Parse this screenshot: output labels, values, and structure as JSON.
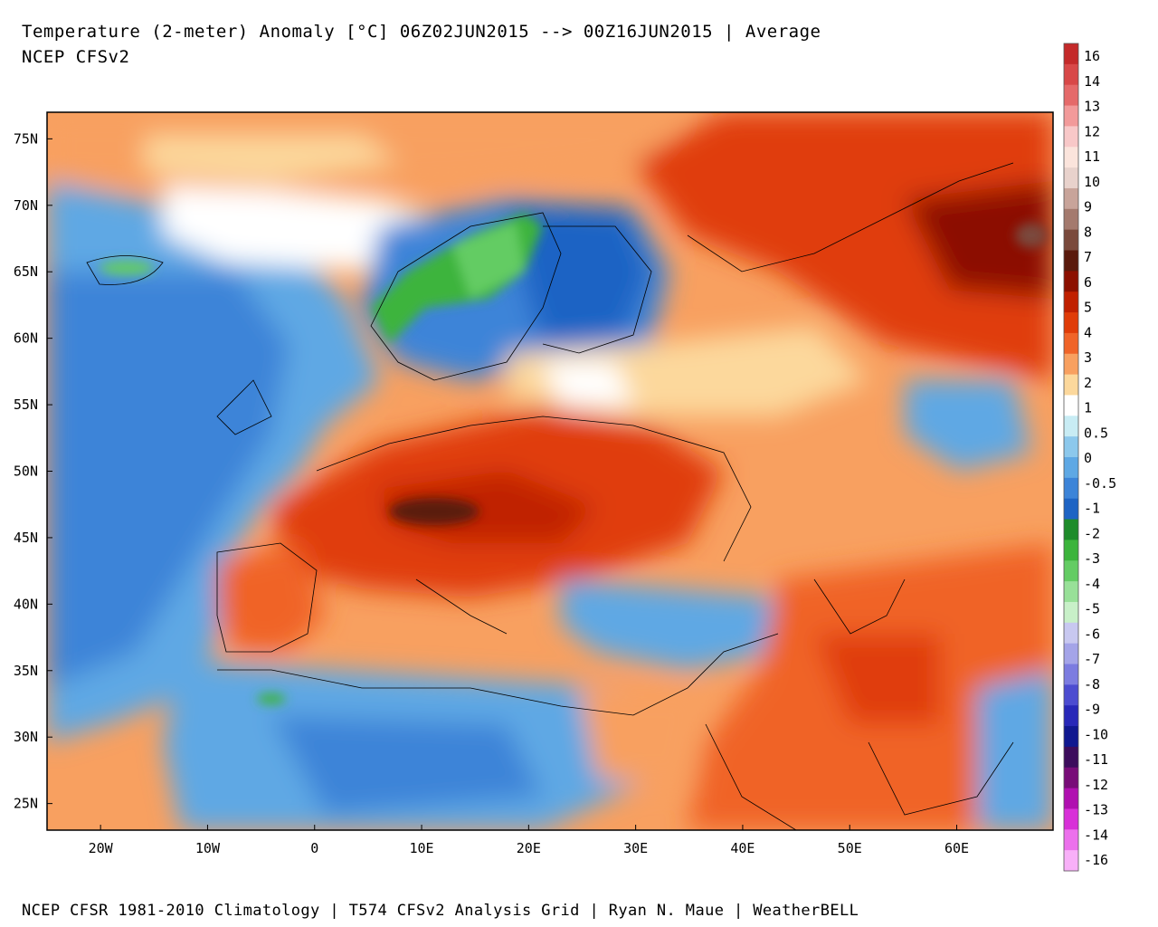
{
  "header": {
    "title": "Temperature (2-meter) Anomaly  [°C] 06Z02JUN2015 --> 00Z16JUN2015 | Average",
    "subtitle": "NCEP CFSv2"
  },
  "footer": {
    "credit": "NCEP CFSR 1981-2010 Climatology | T574 CFSv2 Analysis Grid | Ryan N. Maue | WeatherBELL"
  },
  "map": {
    "region": "Europe / North Africa / Middle East",
    "lon_range": [
      -25,
      69
    ],
    "lat_range": [
      23,
      77
    ],
    "lat_ticks": [
      "75N",
      "70N",
      "65N",
      "60N",
      "55N",
      "50N",
      "45N",
      "40N",
      "35N",
      "30N",
      "25N"
    ],
    "lon_ticks": [
      "20W",
      "10W",
      "0",
      "10E",
      "20E",
      "30E",
      "40E",
      "50E",
      "60E"
    ]
  },
  "colorbar": {
    "labels": [
      "16",
      "14",
      "13",
      "12",
      "11",
      "10",
      "9",
      "8",
      "7",
      "6",
      "5",
      "4",
      "3",
      "2",
      "1",
      "0.5",
      "0",
      "-0.5",
      "-1",
      "-2",
      "-3",
      "-4",
      "-5",
      "-6",
      "-7",
      "-8",
      "-9",
      "-10",
      "-11",
      "-12",
      "-13",
      "-14",
      "-16"
    ],
    "colors": [
      "#c42a2a",
      "#d84848",
      "#e56a6a",
      "#f29a9a",
      "#f8c8c8",
      "#fbe4dc",
      "#e8d2cc",
      "#c8a49a",
      "#a47a6e",
      "#7a4a3c",
      "#5a1a0c",
      "#8c1000",
      "#c02000",
      "#e03c08",
      "#f06428",
      "#f8a060",
      "#fcd89c",
      "#ffffff",
      "#c8ecf4",
      "#8cc8ec",
      "#5ea8e4",
      "#3c84d8",
      "#1e64c4",
      "#1e8c2a",
      "#3cb43c",
      "#64cc64",
      "#98e098",
      "#c8f0c8",
      "#c8c8f0",
      "#a4a4e8",
      "#7c7ce0",
      "#4c4cd0",
      "#2828b8",
      "#101890",
      "#3c0c5c",
      "#780c78",
      "#b010b0",
      "#d830d8",
      "#ec70ec",
      "#f8b0f8"
    ]
  }
}
